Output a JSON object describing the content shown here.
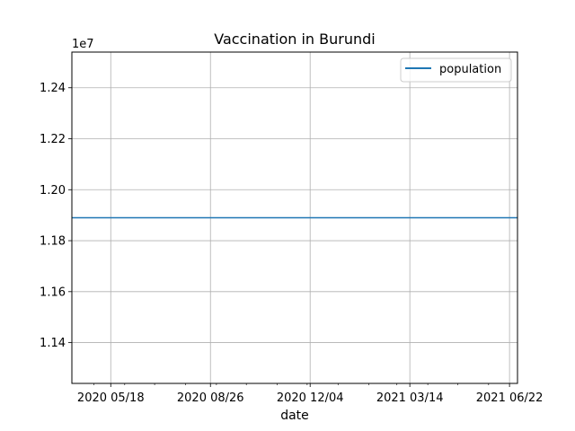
{
  "chart_data": {
    "type": "line",
    "title": "Vaccination in Burundi",
    "xlabel": "date",
    "ylabel": "",
    "y_offset_label": "1e7",
    "x_axis_kind": "date",
    "xlim": [
      "2020-04-09",
      "2021-06-30"
    ],
    "ylim": [
      11240000,
      12540000
    ],
    "x_major_ticks": [
      {
        "date": "2020-05-18",
        "label": "2020 05/18"
      },
      {
        "date": "2020-08-26",
        "label": "2020 08/26"
      },
      {
        "date": "2020-12-04",
        "label": "2020 12/04"
      },
      {
        "date": "2021-03-14",
        "label": "2021 03/14"
      },
      {
        "date": "2021-06-22",
        "label": "2021 06/22"
      }
    ],
    "y_ticks": [
      {
        "value": 11400000,
        "label": "1.14"
      },
      {
        "value": 11600000,
        "label": "1.16"
      },
      {
        "value": 11800000,
        "label": "1.18"
      },
      {
        "value": 12000000,
        "label": "1.20"
      },
      {
        "value": 12200000,
        "label": "1.22"
      },
      {
        "value": 12400000,
        "label": "1.24"
      }
    ],
    "grid": true,
    "legend_position": "top-right",
    "series": [
      {
        "name": "population",
        "color": "#1f77b4",
        "points": [
          {
            "x": "2020-04-09",
            "y": 11890000
          },
          {
            "x": "2021-06-30",
            "y": 11890000
          }
        ]
      }
    ]
  }
}
